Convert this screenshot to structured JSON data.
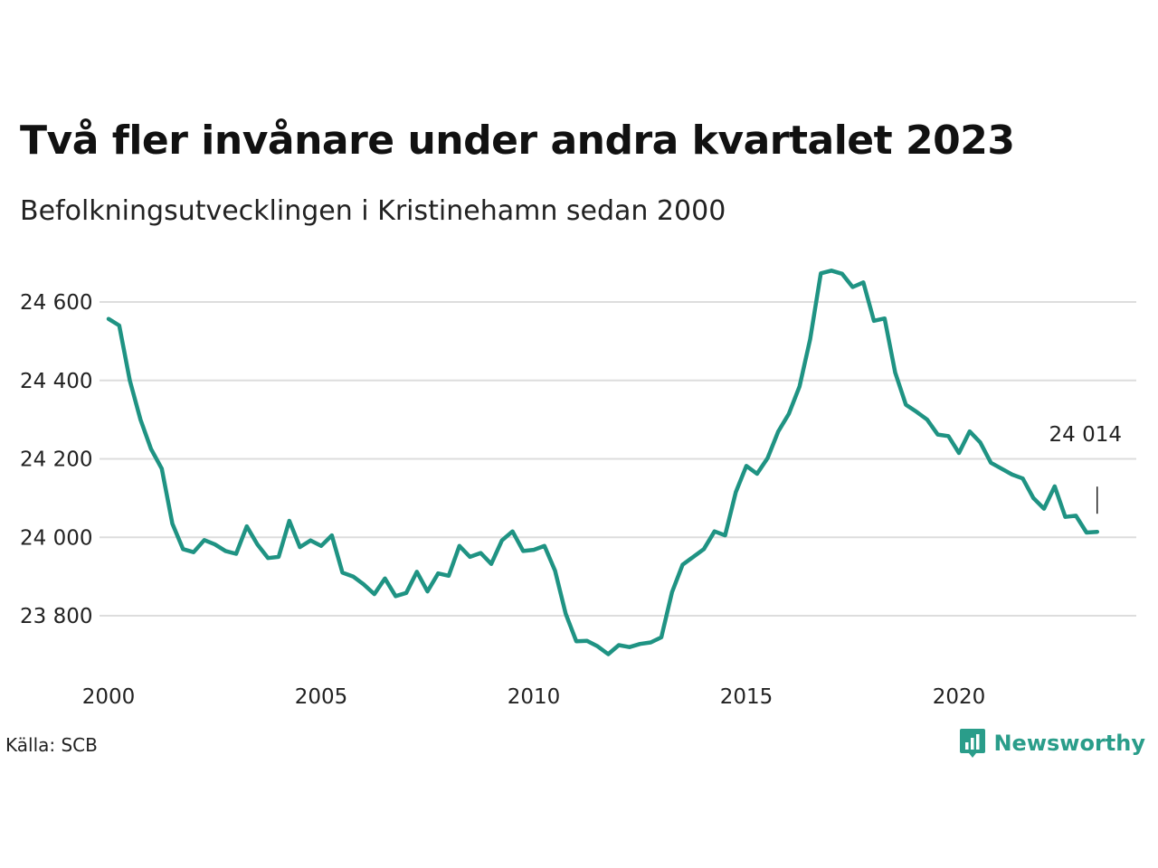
{
  "colors": {
    "line": "#1f9383",
    "grid": "#dddddd",
    "text": "#111111",
    "brand": "#2a9d8a"
  },
  "header": {
    "title": "Två fler invånare under andra kvartalet 2023",
    "subtitle": "Befolkningsutvecklingen i Kristinehamn sedan 2000"
  },
  "footer": {
    "source": "Källa: SCB",
    "brand_name": "Newsworthy",
    "brand_icon": "newsworthy-logo-icon"
  },
  "chart_data": {
    "type": "line",
    "title": "Två fler invånare under andra kvartalet 2023",
    "subtitle": "Befolkningsutvecklingen i Kristinehamn sedan 2000",
    "xlabel": "",
    "ylabel": "",
    "xlim": [
      2000,
      2024.5
    ],
    "ylim": [
      23690,
      24700
    ],
    "grid": true,
    "legend": "none",
    "x_ticks": [
      2000,
      2005,
      2010,
      2015,
      2020
    ],
    "x_tick_labels": [
      "2000",
      "2005",
      "2010",
      "2015",
      "2020"
    ],
    "y_ticks": [
      23800,
      24000,
      24200,
      24400,
      24600
    ],
    "y_tick_labels": [
      "23 800",
      "24 000",
      "24 200",
      "24 400",
      "24 600"
    ],
    "annotation": {
      "text": "24 014",
      "x": 2023.25,
      "y": 24014
    },
    "series": [
      {
        "x": [
          2000.0,
          2000.25,
          2000.5,
          2000.75,
          2001.0,
          2001.25,
          2001.5,
          2001.75,
          2002.0,
          2002.25,
          2002.5,
          2002.75,
          2003.0,
          2003.25,
          2003.5,
          2003.75,
          2004.0,
          2004.25,
          2004.5,
          2004.75,
          2005.0,
          2005.25,
          2005.5,
          2005.75,
          2006.0,
          2006.25,
          2006.5,
          2006.75,
          2007.0,
          2007.25,
          2007.5,
          2007.75,
          2008.0,
          2008.25,
          2008.5,
          2008.75,
          2009.0,
          2009.25,
          2009.5,
          2009.75,
          2010.0,
          2010.25,
          2010.5,
          2010.75,
          2011.0,
          2011.25,
          2011.5,
          2011.75,
          2012.0,
          2012.25,
          2012.5,
          2012.75,
          2013.0,
          2013.25,
          2013.5,
          2013.75,
          2014.0,
          2014.25,
          2014.5,
          2014.75,
          2015.0,
          2015.25,
          2015.5,
          2015.75,
          2016.0,
          2016.25,
          2016.5,
          2016.75,
          2017.0,
          2017.25,
          2017.5,
          2017.75,
          2018.0,
          2018.25,
          2018.5,
          2018.75,
          2019.0,
          2019.25,
          2019.5,
          2019.75,
          2020.0,
          2020.25,
          2020.5,
          2020.75,
          2021.0,
          2021.25,
          2021.5,
          2021.75,
          2022.0,
          2022.25,
          2022.5,
          2022.75,
          2023.0,
          2023.25
        ],
        "y": [
          24557,
          24540,
          24400,
          24300,
          24225,
          24175,
          24035,
          23970,
          23962,
          23993,
          23982,
          23965,
          23958,
          24028,
          23982,
          23947,
          23950,
          24042,
          23975,
          23992,
          23978,
          24005,
          23910,
          23900,
          23880,
          23855,
          23895,
          23850,
          23858,
          23912,
          23862,
          23908,
          23902,
          23978,
          23950,
          23960,
          23932,
          23992,
          24015,
          23965,
          23968,
          23978,
          23915,
          23805,
          23735,
          23736,
          23722,
          23702,
          23725,
          23720,
          23728,
          23732,
          23745,
          23860,
          23930,
          23950,
          23970,
          24015,
          24005,
          24115,
          24182,
          24162,
          24202,
          24270,
          24315,
          24385,
          24505,
          24673,
          24680,
          24672,
          24638,
          24650,
          24552,
          24558,
          24420,
          24338,
          24320,
          24300,
          24262,
          24258,
          24215,
          24270,
          24242,
          24190,
          24175,
          24160,
          24150,
          24100,
          24073,
          24130,
          24052,
          24055,
          24012,
          24014
        ]
      }
    ]
  }
}
